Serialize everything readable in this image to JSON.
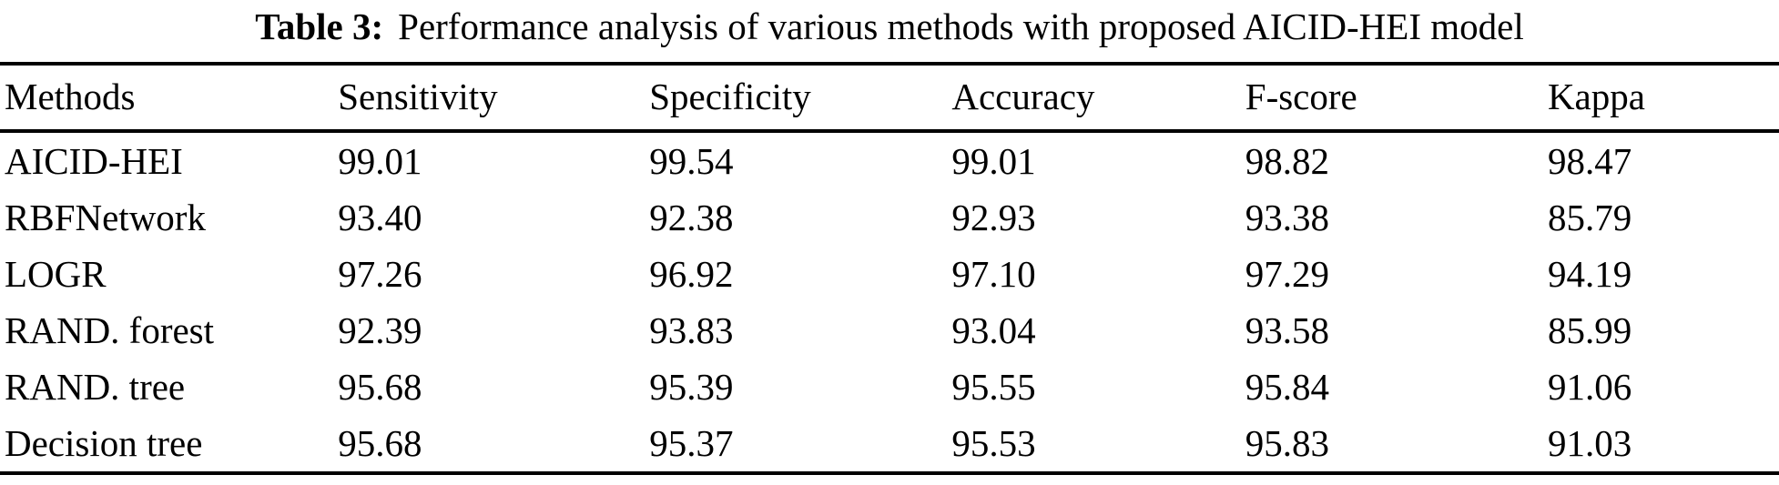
{
  "colors": {
    "background": "#ffffff",
    "text": "#000000",
    "rule": "#000000"
  },
  "caption": {
    "label": "Table 3:",
    "text": "Performance analysis of various methods with proposed AICID-HEI model"
  },
  "table": {
    "columns": [
      "Methods",
      "Sensitivity",
      "Specificity",
      "Accuracy",
      "F-score",
      "Kappa"
    ],
    "rows": [
      [
        "AICID-HEI",
        "99.01",
        "99.54",
        "99.01",
        "98.82",
        "98.47"
      ],
      [
        "RBFNetwork",
        "93.40",
        "92.38",
        "92.93",
        "93.38",
        "85.79"
      ],
      [
        "LOGR",
        "97.26",
        "96.92",
        "97.10",
        "97.29",
        "94.19"
      ],
      [
        "RAND. forest",
        "92.39",
        "93.83",
        "93.04",
        "93.58",
        "85.99"
      ],
      [
        "RAND. tree",
        "95.68",
        "95.39",
        "95.55",
        "95.84",
        "91.06"
      ],
      [
        "Decision tree",
        "95.68",
        "95.37",
        "95.53",
        "95.83",
        "91.03"
      ]
    ]
  },
  "chart_data": {
    "type": "table",
    "title": "Table 3: Performance analysis of various methods with proposed AICID-HEI model",
    "columns": [
      "Methods",
      "Sensitivity",
      "Specificity",
      "Accuracy",
      "F-score",
      "Kappa"
    ],
    "rows": [
      {
        "method": "AICID-HEI",
        "sensitivity": 99.01,
        "specificity": 99.54,
        "accuracy": 99.01,
        "f_score": 98.82,
        "kappa": 98.47
      },
      {
        "method": "RBFNetwork",
        "sensitivity": 93.4,
        "specificity": 92.38,
        "accuracy": 92.93,
        "f_score": 93.38,
        "kappa": 85.79
      },
      {
        "method": "LOGR",
        "sensitivity": 97.26,
        "specificity": 96.92,
        "accuracy": 97.1,
        "f_score": 97.29,
        "kappa": 94.19
      },
      {
        "method": "RAND. forest",
        "sensitivity": 92.39,
        "specificity": 93.83,
        "accuracy": 93.04,
        "f_score": 93.58,
        "kappa": 85.99
      },
      {
        "method": "RAND. tree",
        "sensitivity": 95.68,
        "specificity": 95.39,
        "accuracy": 95.55,
        "f_score": 95.84,
        "kappa": 91.06
      },
      {
        "method": "Decision tree",
        "sensitivity": 95.68,
        "specificity": 95.37,
        "accuracy": 95.53,
        "f_score": 95.83,
        "kappa": 91.03
      }
    ]
  }
}
